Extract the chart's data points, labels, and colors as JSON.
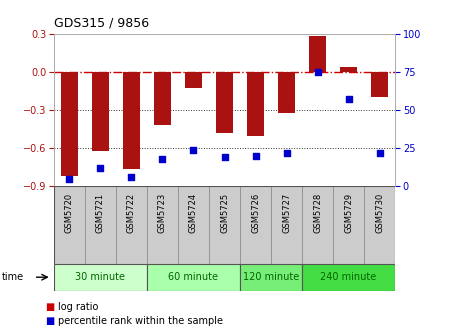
{
  "title": "GDS315 / 9856",
  "samples": [
    "GSM5720",
    "GSM5721",
    "GSM5722",
    "GSM5723",
    "GSM5724",
    "GSM5725",
    "GSM5726",
    "GSM5727",
    "GSM5728",
    "GSM5729",
    "GSM5730"
  ],
  "log_ratio": [
    -0.82,
    -0.62,
    -0.76,
    -0.42,
    -0.13,
    -0.48,
    -0.5,
    -0.32,
    0.28,
    0.04,
    -0.2
  ],
  "percentile": [
    5,
    12,
    6,
    18,
    24,
    19,
    20,
    22,
    75,
    57,
    22
  ],
  "bar_color": "#aa1111",
  "dot_color": "#0000cc",
  "ylim_left": [
    -0.9,
    0.3
  ],
  "ylim_right": [
    0,
    100
  ],
  "groups": [
    {
      "label": "30 minute",
      "start": 0,
      "end": 3,
      "color": "#ccffcc"
    },
    {
      "label": "60 minute",
      "start": 3,
      "end": 6,
      "color": "#aaffaa"
    },
    {
      "label": "120 minute",
      "start": 6,
      "end": 8,
      "color": "#77ee77"
    },
    {
      "label": "240 minute",
      "start": 8,
      "end": 11,
      "color": "#44dd44"
    }
  ],
  "time_label": "time",
  "legend_log_ratio": "log ratio",
  "legend_percentile": "percentile rank within the sample",
  "bar_color_legend": "#cc0000",
  "dot_color_legend": "#0000cc",
  "zero_line_color": "#cc0000",
  "grid_color": "#333333",
  "yticks_left": [
    -0.9,
    -0.6,
    -0.3,
    0,
    0.3
  ],
  "yticks_right": [
    0,
    25,
    50,
    75,
    100
  ],
  "sample_bg": "#cccccc"
}
